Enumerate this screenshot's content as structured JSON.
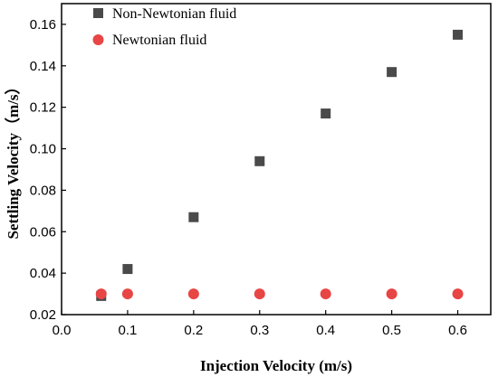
{
  "chart_data": {
    "type": "scatter",
    "xlabel": "Injection Velocity (m/s)",
    "ylabel": "Settling Velocity（m/s）",
    "xlim": [
      0.0,
      0.65
    ],
    "ylim": [
      0.02,
      0.17
    ],
    "x_ticks": [
      "0.0",
      "0.1",
      "0.2",
      "0.3",
      "0.4",
      "0.5",
      "0.6"
    ],
    "y_ticks": [
      "0.02",
      "0.04",
      "0.06",
      "0.08",
      "0.10",
      "0.12",
      "0.14",
      "0.16"
    ],
    "grid": false,
    "legend_position": "top-left",
    "series": [
      {
        "name": "Non-Newtonian fluid",
        "marker": "square",
        "color": "#4a4a4a",
        "points": [
          {
            "x": 0.06,
            "y": 0.029
          },
          {
            "x": 0.1,
            "y": 0.042
          },
          {
            "x": 0.2,
            "y": 0.067
          },
          {
            "x": 0.3,
            "y": 0.094
          },
          {
            "x": 0.4,
            "y": 0.117
          },
          {
            "x": 0.5,
            "y": 0.137
          },
          {
            "x": 0.6,
            "y": 0.155
          }
        ]
      },
      {
        "name": "Newtonian fluid",
        "marker": "circle",
        "color": "#e84545",
        "points": [
          {
            "x": 0.06,
            "y": 0.03
          },
          {
            "x": 0.1,
            "y": 0.03
          },
          {
            "x": 0.2,
            "y": 0.03
          },
          {
            "x": 0.3,
            "y": 0.03
          },
          {
            "x": 0.4,
            "y": 0.03
          },
          {
            "x": 0.5,
            "y": 0.03
          },
          {
            "x": 0.6,
            "y": 0.03
          }
        ]
      }
    ]
  }
}
